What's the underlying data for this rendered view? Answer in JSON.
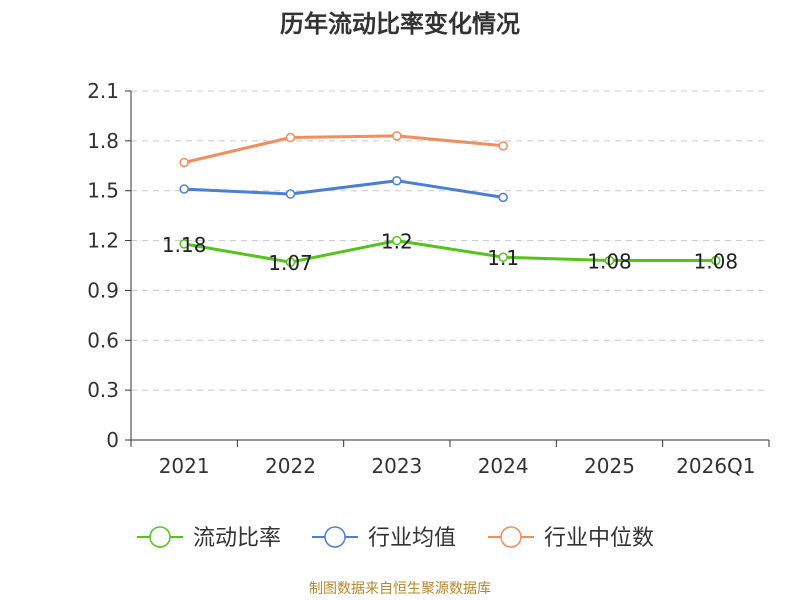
{
  "chart_data": {
    "type": "line",
    "title": "历年流动比率变化情况",
    "categories": [
      "2021",
      "2022",
      "2023",
      "2024",
      "2025",
      "2026Q1"
    ],
    "ylim": [
      0,
      2.1
    ],
    "yticks": [
      0,
      0.3,
      0.6,
      0.9,
      1.2,
      1.5,
      1.8,
      2.1
    ],
    "ytick_labels": [
      "0",
      "0.3",
      "0.6",
      "0.9",
      "1.2",
      "1.5",
      "1.8",
      "2.1"
    ],
    "grid": true,
    "legend_position": "bottom",
    "series": [
      {
        "name": "流动比率",
        "color": "#52c41a",
        "values": [
          1.18,
          1.07,
          1.2,
          1.1,
          1.08,
          1.08
        ],
        "labels": [
          "1.18",
          "1.07",
          "1.2",
          "1.1",
          "1.08",
          "1.08"
        ]
      },
      {
        "name": "行业均值",
        "color": "#4a7fd8",
        "values": [
          1.51,
          1.48,
          1.56,
          1.46,
          null,
          null
        ]
      },
      {
        "name": "行业中位数",
        "color": "#f28d5e",
        "values": [
          1.67,
          1.82,
          1.83,
          1.77,
          null,
          null
        ]
      }
    ]
  },
  "source": "制图数据来自恒生聚源数据库"
}
